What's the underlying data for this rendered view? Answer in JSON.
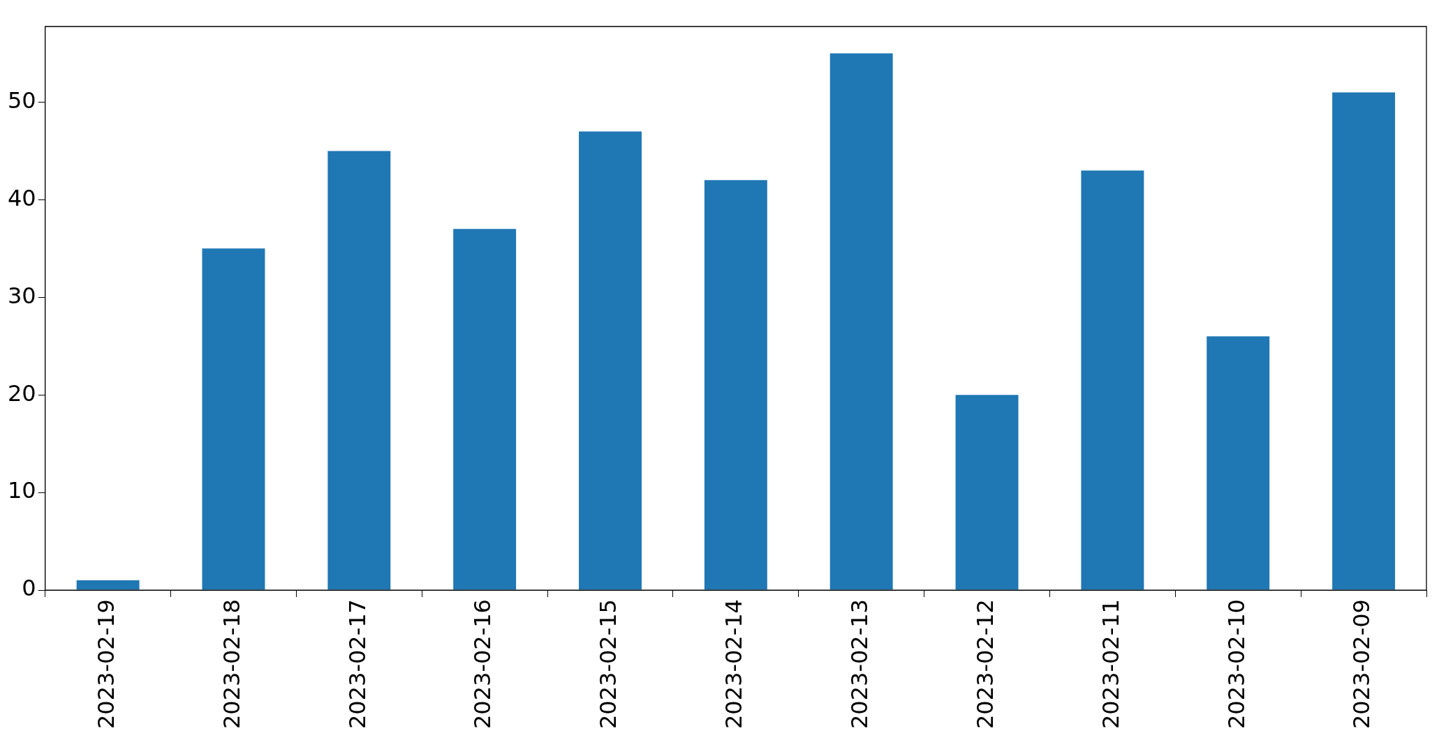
{
  "chart_data": {
    "type": "bar",
    "categories": [
      "2023-02-19",
      "2023-02-18",
      "2023-02-17",
      "2023-02-16",
      "2023-02-15",
      "2023-02-14",
      "2023-02-13",
      "2023-02-12",
      "2023-02-11",
      "2023-02-10",
      "2023-02-09"
    ],
    "values": [
      1,
      35,
      45,
      37,
      47,
      42,
      55,
      20,
      43,
      26,
      51
    ],
    "color": "#1f77b4",
    "ylim": [
      0,
      57.75
    ],
    "yticks": [
      0,
      10,
      20,
      30,
      40,
      50
    ],
    "grid": false,
    "legend": false
  }
}
